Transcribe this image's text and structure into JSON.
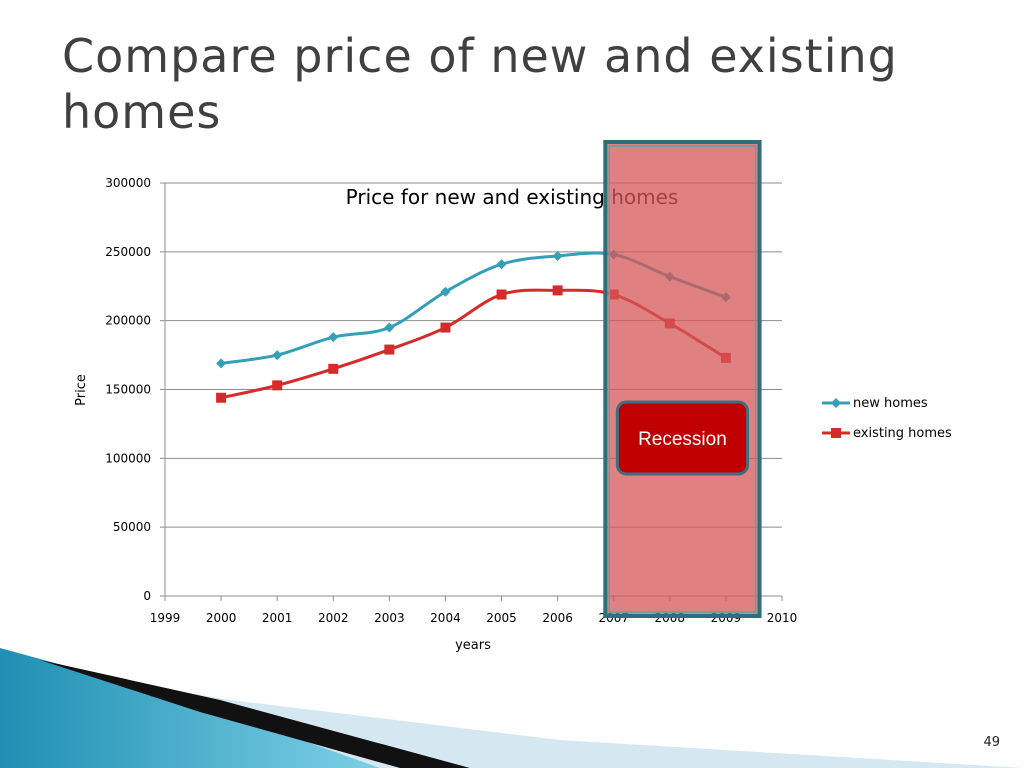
{
  "slide": {
    "title": "Compare price of new and existing homes",
    "number": "49"
  },
  "chart_data": {
    "type": "line",
    "title": "Price for new and existing homes",
    "xlabel": "years",
    "ylabel": "Price",
    "xlim": [
      1999,
      2010
    ],
    "ylim": [
      0,
      300000
    ],
    "x_ticks": [
      1999,
      2000,
      2001,
      2002,
      2003,
      2004,
      2005,
      2006,
      2007,
      2008,
      2009,
      2010
    ],
    "y_ticks": [
      0,
      50000,
      100000,
      150000,
      200000,
      250000,
      300000
    ],
    "grid": true,
    "legend_position": "right",
    "series": [
      {
        "name": "new homes",
        "color": "#33a0b8",
        "marker": "diamond",
        "x": [
          2000,
          2001,
          2002,
          2003,
          2004,
          2005,
          2006,
          2007,
          2008,
          2009
        ],
        "values": [
          169000,
          175000,
          188000,
          195000,
          221000,
          241000,
          247000,
          248000,
          232000,
          217000
        ]
      },
      {
        "name": "existing homes",
        "color": "#d42b2b",
        "marker": "square",
        "x": [
          2000,
          2001,
          2002,
          2003,
          2004,
          2005,
          2006,
          2007,
          2008,
          2009
        ],
        "values": [
          144000,
          153000,
          165000,
          179000,
          195000,
          219000,
          222000,
          219000,
          198000,
          173000
        ]
      }
    ],
    "annotation": {
      "label": "Recession",
      "x_range": [
        2006.85,
        2009.6
      ],
      "fill_color": "#d65757",
      "border_color": "#2f6f7a",
      "label_box_color": "#c00000"
    }
  }
}
